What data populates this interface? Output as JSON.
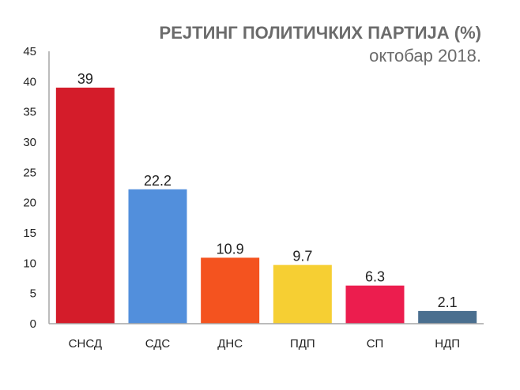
{
  "chart_data": {
    "type": "bar",
    "title": "РЕЈТИНГ ПОЛИТИЧКИХ ПАРТИЈА (%)",
    "subtitle": "октобар 2018.",
    "xlabel": "",
    "ylabel": "",
    "categories": [
      "СНСД",
      "СДС",
      "ДНС",
      "ПДП",
      "СП",
      "НДП"
    ],
    "values": [
      39,
      22.2,
      10.9,
      9.7,
      6.3,
      2.1
    ],
    "data_labels": [
      "39",
      "22.2",
      "10.9",
      "9.7",
      "6.3",
      "2.1"
    ],
    "colors": [
      "#d41c2a",
      "#528fdc",
      "#f4531f",
      "#f6cf33",
      "#ec1d4e",
      "#4a6f8f"
    ],
    "ylim": [
      0,
      45
    ],
    "yticks": [
      0,
      5,
      10,
      15,
      20,
      25,
      30,
      35,
      40,
      45
    ],
    "grid": false,
    "legend": "none"
  }
}
